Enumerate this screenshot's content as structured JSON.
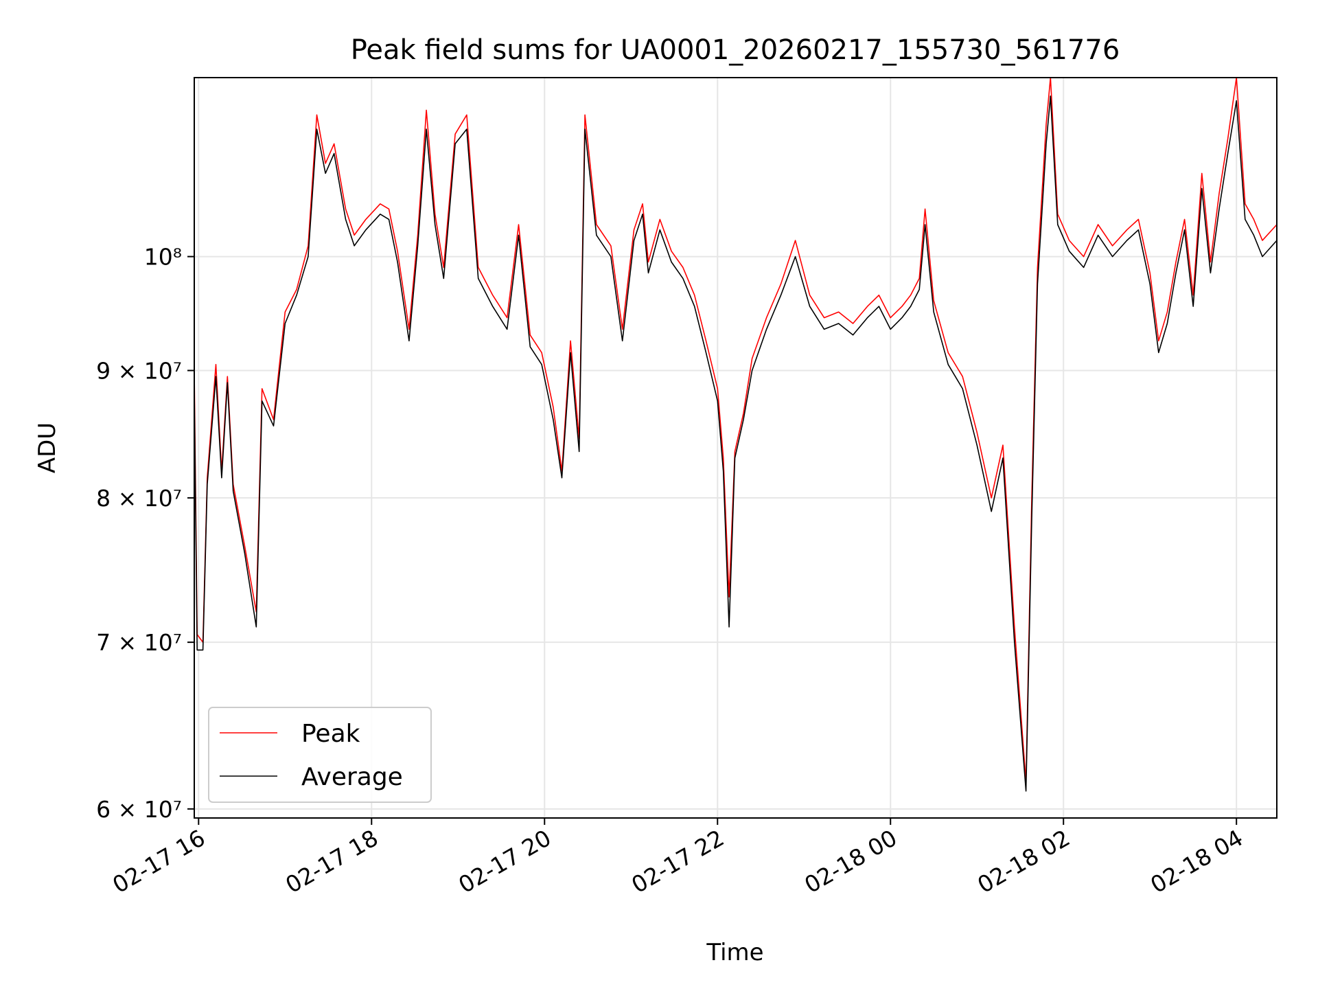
{
  "chart_data": {
    "type": "line",
    "title": "Peak field sums for UA0001_20260217_155730_561776",
    "xlabel": "Time",
    "ylabel": "ADU",
    "y_scale": "log",
    "ylim": [
      59500000,
      118000000
    ],
    "xlim": [
      "2026-02-17T15:57",
      "2026-02-18T04:28"
    ],
    "x_ticks": [
      {
        "t": "2026-02-17T16:00",
        "label": "02-17 16"
      },
      {
        "t": "2026-02-17T18:00",
        "label": "02-17 18"
      },
      {
        "t": "2026-02-17T20:00",
        "label": "02-17 20"
      },
      {
        "t": "2026-02-17T22:00",
        "label": "02-17 22"
      },
      {
        "t": "2026-02-18T00:00",
        "label": "02-18 00"
      },
      {
        "t": "2026-02-18T02:00",
        "label": "02-18 02"
      },
      {
        "t": "2026-02-18T04:00",
        "label": "02-18 04"
      }
    ],
    "y_ticks": [
      {
        "v": 60000000,
        "label": "6 × 10⁷"
      },
      {
        "v": 70000000,
        "label": "7 × 10⁷"
      },
      {
        "v": 80000000,
        "label": "8 × 10⁷"
      },
      {
        "v": 90000000,
        "label": "9 × 10⁷"
      },
      {
        "v": 100000000,
        "label": "10⁸"
      }
    ],
    "grid": true,
    "legend_position": "lower-left",
    "series": [
      {
        "name": "Peak",
        "color": "#ff0000",
        "points": [
          [
            "2026-02-17T15:57",
            90000000
          ],
          [
            "2026-02-17T15:59",
            70500000
          ],
          [
            "2026-02-17T16:03",
            70000000
          ],
          [
            "2026-02-17T16:06",
            81500000
          ],
          [
            "2026-02-17T16:12",
            90500000
          ],
          [
            "2026-02-17T16:16",
            82000000
          ],
          [
            "2026-02-17T16:20",
            89500000
          ],
          [
            "2026-02-17T16:24",
            81000000
          ],
          [
            "2026-02-17T16:32",
            76500000
          ],
          [
            "2026-02-17T16:40",
            72000000
          ],
          [
            "2026-02-17T16:44",
            88500000
          ],
          [
            "2026-02-17T16:52",
            86000000
          ],
          [
            "2026-02-17T17:00",
            95000000
          ],
          [
            "2026-02-17T17:08",
            97000000
          ],
          [
            "2026-02-17T17:16",
            101000000
          ],
          [
            "2026-02-17T17:22",
            114000000
          ],
          [
            "2026-02-17T17:28",
            109000000
          ],
          [
            "2026-02-17T17:34",
            111000000
          ],
          [
            "2026-02-17T17:42",
            104500000
          ],
          [
            "2026-02-17T17:48",
            102000000
          ],
          [
            "2026-02-17T17:56",
            103500000
          ],
          [
            "2026-02-17T18:06",
            105000000
          ],
          [
            "2026-02-17T18:12",
            104500000
          ],
          [
            "2026-02-17T18:18",
            100500000
          ],
          [
            "2026-02-17T18:26",
            93500000
          ],
          [
            "2026-02-17T18:32",
            102000000
          ],
          [
            "2026-02-17T18:38",
            114500000
          ],
          [
            "2026-02-17T18:44",
            104000000
          ],
          [
            "2026-02-17T18:50",
            99000000
          ],
          [
            "2026-02-17T18:58",
            112000000
          ],
          [
            "2026-02-17T19:06",
            114000000
          ],
          [
            "2026-02-17T19:14",
            99000000
          ],
          [
            "2026-02-17T19:24",
            96500000
          ],
          [
            "2026-02-17T19:34",
            94500000
          ],
          [
            "2026-02-17T19:42",
            103000000
          ],
          [
            "2026-02-17T19:50",
            93000000
          ],
          [
            "2026-02-17T19:58",
            91500000
          ],
          [
            "2026-02-17T20:06",
            87000000
          ],
          [
            "2026-02-17T20:12",
            82000000
          ],
          [
            "2026-02-17T20:18",
            92500000
          ],
          [
            "2026-02-17T20:24",
            84500000
          ],
          [
            "2026-02-17T20:28",
            114000000
          ],
          [
            "2026-02-17T20:36",
            103000000
          ],
          [
            "2026-02-17T20:46",
            101000000
          ],
          [
            "2026-02-17T20:54",
            93500000
          ],
          [
            "2026-02-17T21:02",
            102500000
          ],
          [
            "2026-02-17T21:08",
            105000000
          ],
          [
            "2026-02-17T21:12",
            99500000
          ],
          [
            "2026-02-17T21:20",
            103500000
          ],
          [
            "2026-02-17T21:28",
            100500000
          ],
          [
            "2026-02-17T21:36",
            99000000
          ],
          [
            "2026-02-17T21:44",
            96500000
          ],
          [
            "2026-02-17T21:52",
            92500000
          ],
          [
            "2026-02-17T22:00",
            88500000
          ],
          [
            "2026-02-17T22:04",
            83000000
          ],
          [
            "2026-02-17T22:08",
            73000000
          ],
          [
            "2026-02-17T22:12",
            83500000
          ],
          [
            "2026-02-17T22:18",
            86500000
          ],
          [
            "2026-02-17T22:24",
            91000000
          ],
          [
            "2026-02-17T22:34",
            94500000
          ],
          [
            "2026-02-17T22:44",
            97500000
          ],
          [
            "2026-02-17T22:54",
            101500000
          ],
          [
            "2026-02-17T23:04",
            96500000
          ],
          [
            "2026-02-17T23:14",
            94500000
          ],
          [
            "2026-02-17T23:24",
            95000000
          ],
          [
            "2026-02-17T23:34",
            94000000
          ],
          [
            "2026-02-17T23:44",
            95500000
          ],
          [
            "2026-02-17T23:52",
            96500000
          ],
          [
            "2026-02-18T00:00",
            94500000
          ],
          [
            "2026-02-18T00:08",
            95500000
          ],
          [
            "2026-02-18T00:14",
            96500000
          ],
          [
            "2026-02-18T00:20",
            98000000
          ],
          [
            "2026-02-18T00:24",
            104500000
          ],
          [
            "2026-02-18T00:30",
            96000000
          ],
          [
            "2026-02-18T00:40",
            91500000
          ],
          [
            "2026-02-18T00:50",
            89500000
          ],
          [
            "2026-02-18T01:00",
            85000000
          ],
          [
            "2026-02-18T01:10",
            80000000
          ],
          [
            "2026-02-18T01:18",
            84000000
          ],
          [
            "2026-02-18T01:26",
            71000000
          ],
          [
            "2026-02-18T01:34",
            61500000
          ],
          [
            "2026-02-18T01:38",
            80000000
          ],
          [
            "2026-02-18T01:42",
            99000000
          ],
          [
            "2026-02-18T01:48",
            113000000
          ],
          [
            "2026-02-18T01:51",
            118000000
          ],
          [
            "2026-02-18T01:56",
            104000000
          ],
          [
            "2026-02-18T02:04",
            101500000
          ],
          [
            "2026-02-18T02:14",
            100000000
          ],
          [
            "2026-02-18T02:24",
            103000000
          ],
          [
            "2026-02-18T02:34",
            101000000
          ],
          [
            "2026-02-18T02:44",
            102500000
          ],
          [
            "2026-02-18T02:52",
            103500000
          ],
          [
            "2026-02-18T03:00",
            98500000
          ],
          [
            "2026-02-18T03:06",
            92500000
          ],
          [
            "2026-02-18T03:12",
            95000000
          ],
          [
            "2026-02-18T03:18",
            99500000
          ],
          [
            "2026-02-18T03:24",
            103500000
          ],
          [
            "2026-02-18T03:30",
            96500000
          ],
          [
            "2026-02-18T03:36",
            108000000
          ],
          [
            "2026-02-18T03:42",
            99500000
          ],
          [
            "2026-02-18T03:48",
            106000000
          ],
          [
            "2026-02-18T03:54",
            111500000
          ],
          [
            "2026-02-18T04:00",
            118000000
          ],
          [
            "2026-02-18T04:06",
            105000000
          ],
          [
            "2026-02-18T04:12",
            103500000
          ],
          [
            "2026-02-18T04:18",
            101500000
          ],
          [
            "2026-02-18T04:28",
            103000000
          ]
        ]
      },
      {
        "name": "Average",
        "color": "#000000",
        "points": [
          [
            "2026-02-17T15:57",
            88500000
          ],
          [
            "2026-02-17T15:59",
            69500000
          ],
          [
            "2026-02-17T16:03",
            69500000
          ],
          [
            "2026-02-17T16:06",
            81000000
          ],
          [
            "2026-02-17T16:12",
            89500000
          ],
          [
            "2026-02-17T16:16",
            81500000
          ],
          [
            "2026-02-17T16:20",
            89000000
          ],
          [
            "2026-02-17T16:24",
            80500000
          ],
          [
            "2026-02-17T16:32",
            76000000
          ],
          [
            "2026-02-17T16:40",
            71000000
          ],
          [
            "2026-02-17T16:44",
            87500000
          ],
          [
            "2026-02-17T16:52",
            85500000
          ],
          [
            "2026-02-17T17:00",
            94000000
          ],
          [
            "2026-02-17T17:08",
            96500000
          ],
          [
            "2026-02-17T17:16",
            100000000
          ],
          [
            "2026-02-17T17:22",
            112500000
          ],
          [
            "2026-02-17T17:28",
            108000000
          ],
          [
            "2026-02-17T17:34",
            110000000
          ],
          [
            "2026-02-17T17:42",
            103500000
          ],
          [
            "2026-02-17T17:48",
            101000000
          ],
          [
            "2026-02-17T17:56",
            102500000
          ],
          [
            "2026-02-17T18:06",
            104000000
          ],
          [
            "2026-02-17T18:12",
            103500000
          ],
          [
            "2026-02-17T18:18",
            99500000
          ],
          [
            "2026-02-17T18:26",
            92500000
          ],
          [
            "2026-02-17T18:32",
            101000000
          ],
          [
            "2026-02-17T18:38",
            112500000
          ],
          [
            "2026-02-17T18:44",
            103000000
          ],
          [
            "2026-02-17T18:50",
            98000000
          ],
          [
            "2026-02-17T18:58",
            111000000
          ],
          [
            "2026-02-17T19:06",
            112500000
          ],
          [
            "2026-02-17T19:14",
            98000000
          ],
          [
            "2026-02-17T19:24",
            95500000
          ],
          [
            "2026-02-17T19:34",
            93500000
          ],
          [
            "2026-02-17T19:42",
            102000000
          ],
          [
            "2026-02-17T19:50",
            92000000
          ],
          [
            "2026-02-17T19:58",
            90500000
          ],
          [
            "2026-02-17T20:06",
            86000000
          ],
          [
            "2026-02-17T20:12",
            81500000
          ],
          [
            "2026-02-17T20:18",
            91500000
          ],
          [
            "2026-02-17T20:24",
            83500000
          ],
          [
            "2026-02-17T20:28",
            112500000
          ],
          [
            "2026-02-17T20:36",
            102000000
          ],
          [
            "2026-02-17T20:46",
            100000000
          ],
          [
            "2026-02-17T20:54",
            92500000
          ],
          [
            "2026-02-17T21:02",
            101500000
          ],
          [
            "2026-02-17T21:08",
            104000000
          ],
          [
            "2026-02-17T21:12",
            98500000
          ],
          [
            "2026-02-17T21:20",
            102500000
          ],
          [
            "2026-02-17T21:28",
            99500000
          ],
          [
            "2026-02-17T21:36",
            98000000
          ],
          [
            "2026-02-17T21:44",
            95500000
          ],
          [
            "2026-02-17T21:52",
            91500000
          ],
          [
            "2026-02-17T22:00",
            87500000
          ],
          [
            "2026-02-17T22:04",
            82000000
          ],
          [
            "2026-02-17T22:08",
            71000000
          ],
          [
            "2026-02-17T22:12",
            83000000
          ],
          [
            "2026-02-17T22:18",
            86000000
          ],
          [
            "2026-02-17T22:24",
            90000000
          ],
          [
            "2026-02-17T22:34",
            93500000
          ],
          [
            "2026-02-17T22:44",
            96500000
          ],
          [
            "2026-02-17T22:54",
            100000000
          ],
          [
            "2026-02-17T23:04",
            95500000
          ],
          [
            "2026-02-17T23:14",
            93500000
          ],
          [
            "2026-02-17T23:24",
            94000000
          ],
          [
            "2026-02-17T23:34",
            93000000
          ],
          [
            "2026-02-17T23:44",
            94500000
          ],
          [
            "2026-02-17T23:52",
            95500000
          ],
          [
            "2026-02-18T00:00",
            93500000
          ],
          [
            "2026-02-18T00:08",
            94500000
          ],
          [
            "2026-02-18T00:14",
            95500000
          ],
          [
            "2026-02-18T00:20",
            97000000
          ],
          [
            "2026-02-18T00:24",
            103000000
          ],
          [
            "2026-02-18T00:30",
            95000000
          ],
          [
            "2026-02-18T00:40",
            90500000
          ],
          [
            "2026-02-18T00:50",
            88500000
          ],
          [
            "2026-02-18T01:00",
            84000000
          ],
          [
            "2026-02-18T01:10",
            79000000
          ],
          [
            "2026-02-18T01:18",
            83000000
          ],
          [
            "2026-02-18T01:26",
            70000000
          ],
          [
            "2026-02-18T01:34",
            61000000
          ],
          [
            "2026-02-18T01:38",
            78500000
          ],
          [
            "2026-02-18T01:42",
            97500000
          ],
          [
            "2026-02-18T01:48",
            111000000
          ],
          [
            "2026-02-18T01:51",
            116000000
          ],
          [
            "2026-02-18T01:56",
            103000000
          ],
          [
            "2026-02-18T02:04",
            100500000
          ],
          [
            "2026-02-18T02:14",
            99000000
          ],
          [
            "2026-02-18T02:24",
            102000000
          ],
          [
            "2026-02-18T02:34",
            100000000
          ],
          [
            "2026-02-18T02:44",
            101500000
          ],
          [
            "2026-02-18T02:52",
            102500000
          ],
          [
            "2026-02-18T03:00",
            97500000
          ],
          [
            "2026-02-18T03:06",
            91500000
          ],
          [
            "2026-02-18T03:12",
            94000000
          ],
          [
            "2026-02-18T03:18",
            98500000
          ],
          [
            "2026-02-18T03:24",
            102500000
          ],
          [
            "2026-02-18T03:30",
            95500000
          ],
          [
            "2026-02-18T03:36",
            106500000
          ],
          [
            "2026-02-18T03:42",
            98500000
          ],
          [
            "2026-02-18T03:48",
            104500000
          ],
          [
            "2026-02-18T03:54",
            110000000
          ],
          [
            "2026-02-18T04:00",
            115500000
          ],
          [
            "2026-02-18T04:06",
            103500000
          ],
          [
            "2026-02-18T04:12",
            102000000
          ],
          [
            "2026-02-18T04:18",
            100000000
          ],
          [
            "2026-02-18T04:28",
            101500000
          ]
        ]
      }
    ]
  }
}
